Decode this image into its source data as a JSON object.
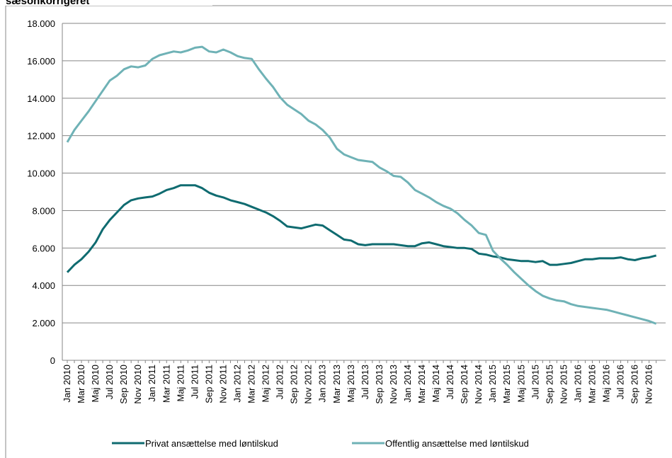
{
  "chart_data": {
    "type": "line",
    "title": "sæsonkorrigeret",
    "categories": [
      "Jan 2010",
      null,
      "Mar 2010",
      null,
      "Maj 2010",
      null,
      "Jul 2010",
      null,
      "Sep 2010",
      null,
      "Nov 2010",
      null,
      "Jan 2011",
      null,
      "Mar 2011",
      null,
      "Maj 2011",
      null,
      "Jul 2011",
      null,
      "Sep 2011",
      null,
      "Nov 2011",
      null,
      "Jan 2012",
      null,
      "Mar 2012",
      null,
      "Maj 2012",
      null,
      "Jul 2012",
      null,
      "Sep 2012",
      null,
      "Nov 2012",
      null,
      "Jan 2013",
      null,
      "Mar 2013",
      null,
      "Maj 2013",
      null,
      "Jul 2013",
      null,
      "Sep 2013",
      null,
      "Nov 2013",
      null,
      "Jan 2014",
      null,
      "Mar 2014",
      null,
      "Maj 2014",
      null,
      "Jul 2014",
      null,
      "Sep 2014",
      null,
      "Nov 2014",
      null,
      "Jan 2015",
      null,
      "Mar 2015",
      null,
      "Maj 2015",
      null,
      "Jul 2015",
      null,
      "Sep 2015",
      null,
      "Nov 2015",
      null,
      "Jan 2016",
      null,
      "Mar 2016",
      null,
      "Maj 2016",
      null,
      "Jul 2016",
      null,
      "Sep 2016",
      null,
      "Nov 2016",
      null
    ],
    "series": [
      {
        "name": "Privat ansættelse med løntilskud",
        "color": "#0f6b70",
        "values": [
          4700,
          5100,
          5400,
          5800,
          6300,
          7000,
          7500,
          7900,
          8300,
          8550,
          8650,
          8700,
          8750,
          8900,
          9100,
          9200,
          9350,
          9350,
          9350,
          9200,
          8950,
          8800,
          8700,
          8550,
          8450,
          8350,
          8200,
          8050,
          7900,
          7700,
          7450,
          7150,
          7100,
          7050,
          7150,
          7250,
          7200,
          6950,
          6700,
          6450,
          6400,
          6200,
          6150,
          6200,
          6200,
          6200,
          6200,
          6150,
          6100,
          6100,
          6250,
          6300,
          6200,
          6100,
          6050,
          6000,
          6000,
          5950,
          5700,
          5650,
          5550,
          5500,
          5400,
          5350,
          5300,
          5300,
          5250,
          5300,
          5100,
          5100,
          5150,
          5200,
          5300,
          5400,
          5400,
          5450,
          5450,
          5450,
          5500,
          5400,
          5350,
          5450,
          5500,
          5600
        ]
      },
      {
        "name": "Offentlig ansættelse med løntilskud",
        "color": "#6fb2b6",
        "values": [
          11650,
          12300,
          12800,
          13300,
          13850,
          14400,
          14950,
          15200,
          15550,
          15700,
          15650,
          15750,
          16100,
          16300,
          16400,
          16500,
          16450,
          16550,
          16700,
          16750,
          16500,
          16450,
          16600,
          16450,
          16250,
          16150,
          16100,
          15550,
          15050,
          14600,
          14050,
          13650,
          13400,
          13150,
          12800,
          12600,
          12300,
          11900,
          11300,
          11000,
          10850,
          10700,
          10650,
          10600,
          10300,
          10100,
          9850,
          9800,
          9500,
          9100,
          8900,
          8700,
          8450,
          8250,
          8100,
          7850,
          7500,
          7200,
          6800,
          6700,
          5850,
          5450,
          5100,
          4700,
          4350,
          4000,
          3700,
          3450,
          3300,
          3200,
          3150,
          3000,
          2900,
          2850,
          2800,
          2750,
          2700,
          2600,
          2500,
          2400,
          2300,
          2200,
          2100,
          1950
        ]
      }
    ],
    "ylim": [
      0,
      18000
    ],
    "yticks": [
      0,
      {
        "value": 2000,
        "label": "2.000"
      },
      {
        "value": 4000,
        "label": "4.000"
      },
      {
        "value": 6000,
        "label": "6.000"
      },
      {
        "value": 8000,
        "label": "8.000"
      },
      {
        "value": 10000,
        "label": "10.000"
      },
      {
        "value": 12000,
        "label": "12.000"
      },
      {
        "value": 14000,
        "label": "14.000"
      },
      {
        "value": 16000,
        "label": "16.000"
      },
      {
        "value": 18000,
        "label": "18.000"
      }
    ],
    "grid": true
  }
}
